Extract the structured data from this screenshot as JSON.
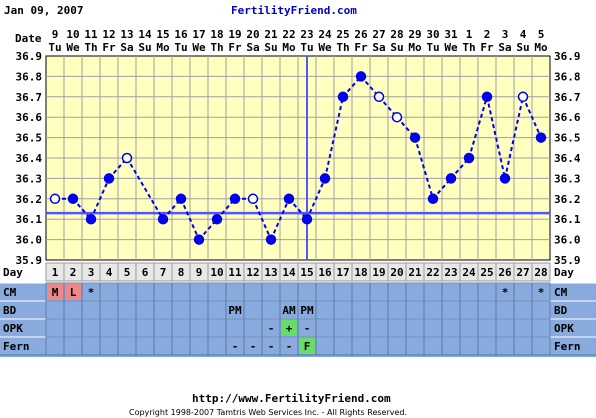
{
  "header": {
    "date": "Jan 09, 2007",
    "site": "FertilityFriend.com"
  },
  "footer": {
    "url": "http://www.FertilityFriend.com",
    "copyright": "Copyright 1998-2007 Tamtris Web Services Inc. - All Rights Reserved."
  },
  "row_labels": {
    "date": "Date",
    "day": "Day",
    "cm": "CM",
    "bd": "BD",
    "opk": "OPK",
    "fern": "Fern"
  },
  "colors": {
    "plot_bg": "#ffffc0",
    "line": "#0000ee",
    "grid": "#a0a0a0",
    "band": "#88aadd",
    "cm_red": "#ee8888",
    "opk_green": "#66dd66"
  },
  "chart_data": {
    "type": "line",
    "dates": [
      "9",
      "10",
      "11",
      "12",
      "13",
      "14",
      "15",
      "16",
      "17",
      "18",
      "19",
      "20",
      "21",
      "22",
      "23",
      "24",
      "25",
      "26",
      "27",
      "28",
      "29",
      "30",
      "31",
      "1",
      "2",
      "3",
      "4",
      "5"
    ],
    "weekdays": [
      "Tu",
      "We",
      "Th",
      "Fr",
      "Sa",
      "Su",
      "Mo",
      "Tu",
      "We",
      "Th",
      "Fr",
      "Sa",
      "Su",
      "Mo",
      "Tu",
      "We",
      "Th",
      "Fr",
      "Sa",
      "Su",
      "Mo",
      "Tu",
      "We",
      "Th",
      "Fr",
      "Sa",
      "Su",
      "Mo"
    ],
    "days": [
      "1",
      "2",
      "3",
      "4",
      "5",
      "6",
      "7",
      "8",
      "9",
      "10",
      "11",
      "12",
      "13",
      "14",
      "15",
      "16",
      "17",
      "18",
      "19",
      "20",
      "21",
      "22",
      "23",
      "24",
      "25",
      "26",
      "27",
      "28"
    ],
    "temps": [
      36.2,
      36.2,
      36.1,
      36.3,
      36.4,
      null,
      36.1,
      36.2,
      36.0,
      36.1,
      36.2,
      36.2,
      36.0,
      36.2,
      36.1,
      36.3,
      36.7,
      36.8,
      36.7,
      36.6,
      36.5,
      36.2,
      36.3,
      36.4,
      36.7,
      36.3,
      36.7,
      36.5
    ],
    "open_points": [
      1,
      5,
      12,
      19,
      20,
      27
    ],
    "dashed_segments": [
      [
        4,
        5
      ],
      [
        5,
        7
      ]
    ],
    "coverline": 36.13,
    "ovulation_day": 15,
    "ylim": [
      35.9,
      36.9
    ],
    "yticks": [
      "35.9",
      "36.0",
      "36.1",
      "36.2",
      "36.3",
      "36.4",
      "36.5",
      "36.6",
      "36.7",
      "36.8",
      "36.9"
    ],
    "cm": [
      {
        "day": 1,
        "text": "M",
        "bg": "red"
      },
      {
        "day": 2,
        "text": "L",
        "bg": "red"
      },
      {
        "day": 3,
        "text": "*"
      },
      {
        "day": 26,
        "text": "*"
      },
      {
        "day": 28,
        "text": "*"
      }
    ],
    "bd": [
      {
        "day": 11,
        "text": "PM"
      },
      {
        "day": 14,
        "text": "AM"
      },
      {
        "day": 15,
        "text": "PM"
      }
    ],
    "opk": [
      {
        "day": 13,
        "text": "-"
      },
      {
        "day": 14,
        "text": "+",
        "bg": "green"
      },
      {
        "day": 15,
        "text": "-"
      }
    ],
    "fern": [
      {
        "day": 11,
        "text": "-"
      },
      {
        "day": 12,
        "text": "-"
      },
      {
        "day": 13,
        "text": "-"
      },
      {
        "day": 14,
        "text": "-"
      },
      {
        "day": 15,
        "text": "F",
        "bg": "green"
      }
    ]
  }
}
